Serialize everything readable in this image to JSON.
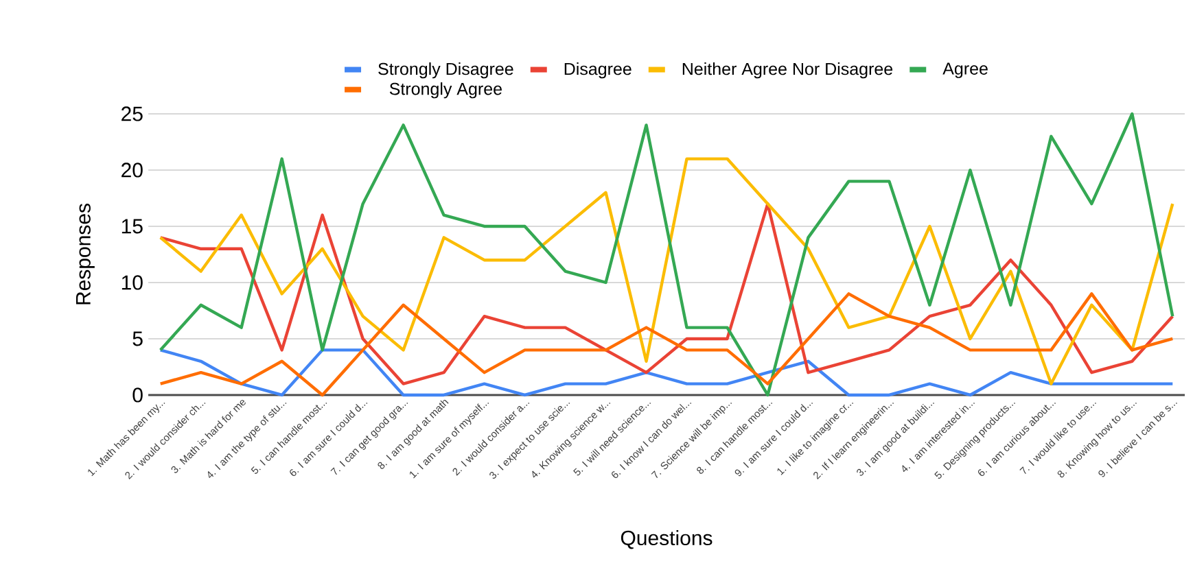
{
  "chart_data": {
    "type": "line",
    "xlabel": "Questions",
    "ylabel": "Responses",
    "categories": [
      "1. Math has been my...",
      "2. I would consider ch...",
      "3. Math is hard for me",
      "4. I am the type of stu...",
      "5. I can handle most...",
      "6. I am sure I could d...",
      "7. I can get good gra...",
      "8. I am good at math",
      "1. I am sure of myself...",
      "2. I would consider a...",
      "3. I expect to use scie...",
      "4. Knowing science w...",
      "5. I will need science...",
      "6. I know I can do wel...",
      "7. Science will be imp...",
      "8. I can handle most...",
      "9. I am sure I could d...",
      "1. I like to imagine cr...",
      "2. If I learn engineerin...",
      "3. I am good at buildi...",
      "4. I am interested in...",
      "5. Designing products...",
      "6. I am curious about...",
      "7. I would like to use...",
      "8. Knowing how to us...",
      "9. I believe I can be s..."
    ],
    "series": [
      {
        "name": "Strongly Disagree",
        "color": "#4285f4",
        "values": [
          4,
          3,
          1,
          0,
          4,
          4,
          0,
          0,
          1,
          0,
          1,
          1,
          2,
          1,
          1,
          2,
          3,
          0,
          0,
          1,
          0,
          2,
          1,
          1,
          1,
          1
        ]
      },
      {
        "name": "Disagree",
        "color": "#ea4335",
        "values": [
          14,
          13,
          13,
          4,
          16,
          5,
          1,
          2,
          7,
          6,
          6,
          4,
          2,
          5,
          5,
          17,
          2,
          3,
          4,
          7,
          8,
          12,
          8,
          2,
          3,
          7
        ]
      },
      {
        "name": "Neither Agree Nor Disagree",
        "color": "#fbbc04",
        "values": [
          14,
          11,
          16,
          9,
          13,
          7,
          4,
          14,
          12,
          12,
          15,
          18,
          3,
          21,
          21,
          17,
          13,
          6,
          7,
          15,
          5,
          11,
          1,
          8,
          4,
          17
        ]
      },
      {
        "name": "Agree",
        "color": "#34a853",
        "values": [
          4,
          8,
          6,
          21,
          4,
          17,
          24,
          16,
          15,
          15,
          11,
          10,
          24,
          6,
          6,
          0,
          14,
          19,
          19,
          8,
          20,
          8,
          23,
          17,
          25,
          7
        ]
      },
      {
        "name": "Strongly Agree",
        "color": "#ff6d01",
        "values": [
          1,
          2,
          1,
          3,
          0,
          4,
          8,
          5,
          2,
          4,
          4,
          4,
          6,
          4,
          4,
          1,
          5,
          9,
          7,
          6,
          4,
          4,
          4,
          9,
          4,
          5
        ]
      }
    ],
    "ylim": [
      0,
      25
    ],
    "yticks": [
      0,
      5,
      10,
      15,
      20,
      25
    ],
    "grid": "y",
    "legend": "top",
    "marker": "none",
    "line_style": "solid"
  }
}
